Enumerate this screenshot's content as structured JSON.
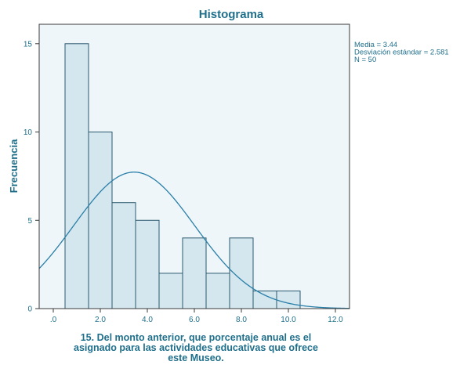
{
  "chart_data": {
    "type": "bar",
    "title": "Histograma",
    "ylabel": "Frecuencia",
    "xlabel_lines": [
      "15. Del monto anterior, que porcentaje anual es el",
      "asignado para las actividades educativas que ofrece",
      "este Museo."
    ],
    "bins": [
      {
        "start": 0.5,
        "end": 1.5,
        "count": 15
      },
      {
        "start": 1.5,
        "end": 2.5,
        "count": 10
      },
      {
        "start": 2.5,
        "end": 3.5,
        "count": 6
      },
      {
        "start": 3.5,
        "end": 4.5,
        "count": 5
      },
      {
        "start": 4.5,
        "end": 5.5,
        "count": 2
      },
      {
        "start": 5.5,
        "end": 6.5,
        "count": 4
      },
      {
        "start": 6.5,
        "end": 7.5,
        "count": 2
      },
      {
        "start": 7.5,
        "end": 8.5,
        "count": 4
      },
      {
        "start": 8.5,
        "end": 9.5,
        "count": 1
      },
      {
        "start": 9.5,
        "end": 10.5,
        "count": 1
      }
    ],
    "xlim": [
      -0.6,
      12.6
    ],
    "ylim": [
      0,
      16.1
    ],
    "x_ticks": [
      {
        "value": 0,
        "label": ".0"
      },
      {
        "value": 2,
        "label": "2.0"
      },
      {
        "value": 4,
        "label": "4.0"
      },
      {
        "value": 6,
        "label": "6.0"
      },
      {
        "value": 8,
        "label": "8.0"
      },
      {
        "value": 10,
        "label": "10.0"
      },
      {
        "value": 12,
        "label": "12.0"
      }
    ],
    "y_ticks": [
      {
        "value": 0,
        "label": "0"
      },
      {
        "value": 5,
        "label": "5"
      },
      {
        "value": 10,
        "label": "10"
      },
      {
        "value": 15,
        "label": "15"
      }
    ],
    "normal_curve": {
      "mean": 3.44,
      "sd": 2.581,
      "n": 50,
      "bin_width": 1
    },
    "stats_text": [
      "Media = 3.44",
      "Desviación estándar = 2.581",
      "N = 50"
    ],
    "colors": {
      "plot_bg": "#eef6f9",
      "bar_fill": "#d4e6ee",
      "bar_stroke": "#2b5a6e",
      "curve": "#2a7fa8",
      "text": "#1f6f8b",
      "axis": "#3a3a3a"
    },
    "grid": false
  }
}
